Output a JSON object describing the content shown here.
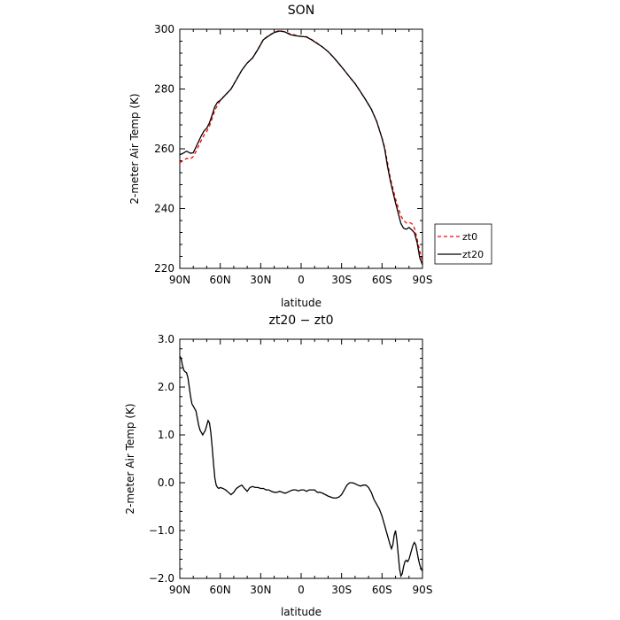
{
  "chart_data": [
    {
      "type": "line",
      "title": "SON",
      "xlabel": "latitude",
      "ylabel": "2-meter Air Temp (K)",
      "xlim": [
        90,
        -90
      ],
      "ylim": [
        220,
        300
      ],
      "xticks": [
        90,
        60,
        30,
        0,
        -30,
        -60,
        -90
      ],
      "xtick_labels": [
        "90N",
        "60N",
        "30N",
        "0",
        "30S",
        "60S",
        "90S"
      ],
      "yticks": [
        220,
        240,
        260,
        280,
        300
      ],
      "ytick_labels": [
        "220",
        "240",
        "260",
        "280",
        "300"
      ],
      "legend_position": "outside-right",
      "series": [
        {
          "name": "zt0",
          "color": "#ff0000",
          "dash": "dashed",
          "x": [
            90,
            88,
            85,
            82,
            80,
            78,
            76,
            74,
            72,
            70,
            68,
            66,
            64,
            62,
            60,
            56,
            52,
            48,
            44,
            40,
            36,
            32,
            28,
            24,
            20,
            16,
            12,
            8,
            4,
            0,
            -4,
            -8,
            -12,
            -16,
            -20,
            -24,
            -28,
            -32,
            -36,
            -40,
            -44,
            -48,
            -52,
            -56,
            -60,
            -62,
            -64,
            -66,
            -68,
            -70,
            -72,
            -74,
            -76,
            -78,
            -80,
            -82,
            -84,
            -86,
            -88,
            -90
          ],
          "y": [
            255.3,
            255.9,
            256.8,
            256.7,
            257.4,
            259.1,
            261.0,
            262.9,
            264.6,
            265.8,
            267.6,
            270.2,
            272.9,
            274.6,
            276.2,
            278.1,
            280.0,
            283.2,
            286.3,
            288.7,
            290.4,
            293.4,
            296.6,
            297.9,
            299.0,
            299.6,
            299.1,
            298.4,
            298.0,
            297.6,
            297.5,
            296.5,
            295.3,
            294.0,
            292.5,
            290.6,
            288.5,
            286.3,
            284.0,
            281.8,
            279.1,
            276.3,
            273.3,
            269.3,
            263.6,
            260.4,
            255.6,
            250.6,
            246.8,
            243.3,
            240.3,
            237.6,
            236.0,
            235.2,
            235.4,
            235.0,
            233.5,
            230.0,
            225.6,
            222.5
          ]
        },
        {
          "name": "zt20",
          "color": "#000000",
          "dash": "solid",
          "x": [
            90,
            88,
            85,
            82,
            80,
            78,
            76,
            74,
            72,
            70,
            68,
            66,
            64,
            62,
            60,
            56,
            52,
            48,
            44,
            40,
            36,
            32,
            28,
            24,
            20,
            16,
            12,
            8,
            4,
            0,
            -4,
            -8,
            -12,
            -16,
            -20,
            -24,
            -28,
            -32,
            -36,
            -40,
            -44,
            -48,
            -52,
            -56,
            -60,
            -62,
            -64,
            -66,
            -68,
            -70,
            -72,
            -74,
            -76,
            -78,
            -80,
            -82,
            -84,
            -86,
            -88,
            -90
          ],
          "y": [
            258.0,
            258.4,
            259.2,
            258.5,
            258.7,
            260.6,
            262.5,
            264.4,
            266.0,
            266.9,
            268.7,
            271.3,
            274.1,
            275.6,
            276.2,
            278.1,
            280.0,
            283.1,
            286.3,
            288.7,
            290.4,
            293.3,
            296.5,
            297.8,
            298.9,
            299.4,
            299.1,
            298.2,
            297.8,
            297.6,
            297.4,
            296.4,
            295.2,
            294.0,
            292.5,
            290.6,
            288.5,
            286.3,
            284.0,
            281.8,
            279.1,
            276.3,
            273.3,
            269.2,
            263.5,
            259.9,
            254.3,
            249.6,
            245.7,
            241.9,
            238.5,
            235.0,
            233.4,
            233.1,
            233.7,
            232.9,
            231.9,
            228.7,
            223.5,
            221.2
          ]
        }
      ]
    },
    {
      "type": "line",
      "title": "zt20 − zt0",
      "xlabel": "latitude",
      "ylabel": "2-meter Air Temp (K)",
      "xlim": [
        90,
        -90
      ],
      "ylim": [
        -2.0,
        3.0
      ],
      "xticks": [
        90,
        60,
        30,
        0,
        -30,
        -60,
        -90
      ],
      "xtick_labels": [
        "90N",
        "60N",
        "30N",
        "0",
        "30S",
        "60S",
        "90S"
      ],
      "yticks": [
        -2.0,
        -1.0,
        0.0,
        1.0,
        2.0,
        3.0
      ],
      "ytick_labels": [
        "−2.0",
        "−1.0",
        "0.0",
        "1.0",
        "2.0",
        "3.0"
      ],
      "series": [
        {
          "color": "#000000",
          "dash": "solid",
          "x": [
            90,
            89,
            88,
            87,
            86,
            85,
            84,
            83,
            82,
            81,
            80,
            79,
            78,
            77,
            76,
            75,
            74,
            73,
            72,
            71,
            70,
            69,
            68,
            67,
            66,
            65,
            64,
            63,
            62,
            61,
            60,
            58,
            56,
            54,
            52,
            50,
            48,
            46,
            44,
            42,
            40,
            38,
            36,
            34,
            32,
            30,
            28,
            26,
            24,
            22,
            20,
            18,
            16,
            14,
            12,
            10,
            8,
            6,
            4,
            2,
            0,
            -2,
            -4,
            -6,
            -8,
            -10,
            -12,
            -14,
            -16,
            -18,
            -20,
            -22,
            -24,
            -26,
            -28,
            -30,
            -32,
            -34,
            -36,
            -38,
            -40,
            -42,
            -44,
            -46,
            -48,
            -50,
            -52,
            -54,
            -56,
            -58,
            -60,
            -62,
            -64,
            -66,
            -67,
            -68,
            -69,
            -70,
            -71,
            -72,
            -73,
            -74,
            -75,
            -76,
            -77,
            -78,
            -79,
            -80,
            -81,
            -82,
            -83,
            -84,
            -85,
            -86,
            -87,
            -88,
            -89,
            -90
          ],
          "y": [
            2.65,
            2.6,
            2.45,
            2.35,
            2.32,
            2.3,
            2.2,
            2.0,
            1.8,
            1.65,
            1.6,
            1.55,
            1.5,
            1.35,
            1.2,
            1.1,
            1.05,
            1.0,
            1.05,
            1.1,
            1.2,
            1.3,
            1.25,
            1.05,
            0.75,
            0.4,
            0.1,
            -0.05,
            -0.1,
            -0.12,
            -0.1,
            -0.12,
            -0.15,
            -0.2,
            -0.25,
            -0.2,
            -0.12,
            -0.08,
            -0.05,
            -0.12,
            -0.18,
            -0.1,
            -0.08,
            -0.1,
            -0.1,
            -0.12,
            -0.12,
            -0.15,
            -0.15,
            -0.18,
            -0.2,
            -0.2,
            -0.18,
            -0.2,
            -0.22,
            -0.2,
            -0.17,
            -0.15,
            -0.15,
            -0.17,
            -0.15,
            -0.15,
            -0.18,
            -0.15,
            -0.15,
            -0.15,
            -0.2,
            -0.2,
            -0.22,
            -0.25,
            -0.28,
            -0.3,
            -0.32,
            -0.32,
            -0.3,
            -0.25,
            -0.15,
            -0.05,
            0.0,
            0.0,
            -0.02,
            -0.05,
            -0.07,
            -0.05,
            -0.05,
            -0.1,
            -0.2,
            -0.35,
            -0.45,
            -0.55,
            -0.7,
            -0.9,
            -1.1,
            -1.3,
            -1.38,
            -1.3,
            -1.1,
            -1.0,
            -1.2,
            -1.5,
            -1.8,
            -1.95,
            -1.9,
            -1.75,
            -1.65,
            -1.62,
            -1.65,
            -1.6,
            -1.5,
            -1.4,
            -1.3,
            -1.25,
            -1.3,
            -1.45,
            -1.6,
            -1.72,
            -1.8,
            -1.85
          ]
        }
      ]
    }
  ]
}
